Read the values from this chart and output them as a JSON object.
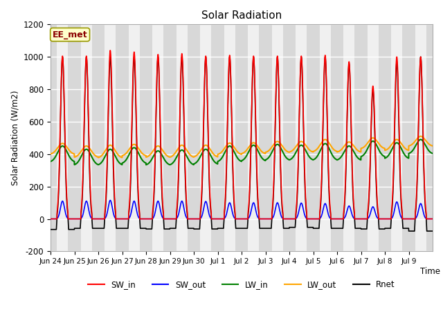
{
  "title": "Solar Radiation",
  "ylabel": "Solar Radiation (W/m2)",
  "xlabel": "Time",
  "ylim": [
    -200,
    1200
  ],
  "yticks": [
    -200,
    0,
    200,
    400,
    600,
    800,
    1000,
    1200
  ],
  "annotation": "EE_met",
  "series": {
    "SW_in": {
      "color": "red",
      "lw": 1.2
    },
    "SW_out": {
      "color": "blue",
      "lw": 1.2
    },
    "LW_in": {
      "color": "green",
      "lw": 1.5
    },
    "LW_out": {
      "color": "orange",
      "lw": 1.5
    },
    "Rnet": {
      "color": "black",
      "lw": 1.2
    }
  },
  "n_days": 16,
  "points_per_day": 288,
  "xtick_labels": [
    "Jun 24",
    "Jun 25",
    "Jun 26",
    "Jun 27",
    "Jun 28",
    "Jun 29",
    "Jun 30",
    "Jul 1",
    "Jul 2",
    "Jul 3",
    "Jul 4",
    "Jul 5",
    "Jul 6",
    "Jul 7",
    "Jul 8",
    "Jul 9"
  ],
  "SW_in_peaks": [
    1005,
    1005,
    1040,
    1030,
    1015,
    1020,
    1005,
    1010,
    1005,
    1005,
    1005,
    1010,
    970,
    820,
    1000,
    1000
  ],
  "SW_out_peaks": [
    110,
    110,
    115,
    110,
    110,
    110,
    108,
    100,
    100,
    100,
    98,
    95,
    80,
    75,
    105,
    95
  ],
  "LW_in_base": [
    350,
    330,
    330,
    340,
    330,
    330,
    335,
    350,
    355,
    360,
    360,
    360,
    360,
    380,
    370,
    400
  ],
  "LW_in_peak_add": [
    100,
    100,
    100,
    100,
    90,
    95,
    95,
    100,
    100,
    100,
    95,
    105,
    90,
    100,
    100,
    90
  ],
  "LW_out_base": [
    398,
    378,
    375,
    387,
    378,
    378,
    380,
    395,
    400,
    408,
    410,
    413,
    410,
    432,
    420,
    448
  ],
  "LW_out_peak_add": [
    68,
    72,
    80,
    73,
    72,
    77,
    75,
    73,
    70,
    70,
    68,
    77,
    65,
    68,
    70,
    62
  ],
  "Rnet_night": [
    -65,
    -58,
    -58,
    -58,
    -62,
    -58,
    -62,
    -58,
    -58,
    -58,
    -52,
    -58,
    -58,
    -62,
    -58,
    -75
  ],
  "Rnet_peaks": [
    1000,
    1000,
    1000,
    1000,
    1000,
    1000,
    1000,
    1000,
    1000,
    1000,
    1000,
    1000,
    960,
    800,
    970,
    1000
  ],
  "day_start": 0.27,
  "day_end": 0.73,
  "SW_sigma": 0.09,
  "LW_sigma": 0.2,
  "Rnet_sigma": 0.085
}
